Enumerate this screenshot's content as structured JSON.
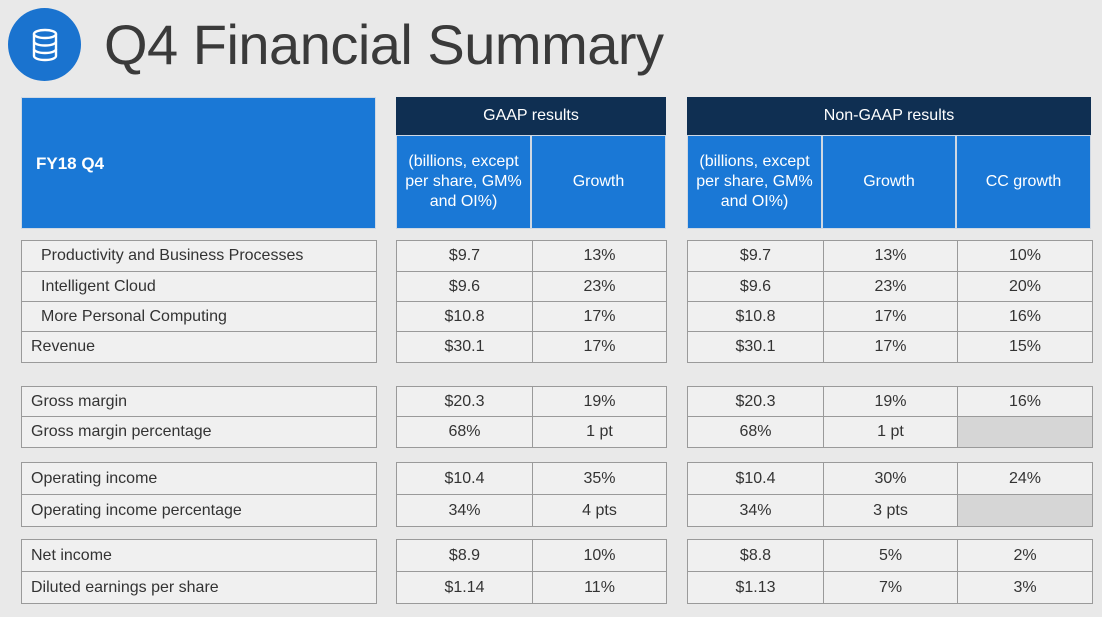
{
  "title": "Q4 Financial Summary",
  "colors": {
    "blue": "#1a78d6",
    "navy": "#0f2f52",
    "logo": "#1a73cf"
  },
  "logo_icon": "database-icon",
  "header": {
    "period": "FY18 Q4",
    "gaap": "GAAP results",
    "non_gaap": "Non-GAAP results",
    "units": "(billions, except per share, GM% and OI%)",
    "growth": "Growth",
    "cc_growth": "CC growth"
  },
  "groups": [
    [
      {
        "label": "Productivity and Business Processes",
        "indent": true,
        "gaap": "$9.7",
        "gaap_growth": "13%",
        "ng": "$9.7",
        "ng_growth": "13%",
        "cc": "10%"
      },
      {
        "label": "Intelligent Cloud",
        "indent": true,
        "gaap": "$9.6",
        "gaap_growth": "23%",
        "ng": "$9.6",
        "ng_growth": "23%",
        "cc": "20%"
      },
      {
        "label": "More Personal Computing",
        "indent": true,
        "gaap": "$10.8",
        "gaap_growth": "17%",
        "ng": "$10.8",
        "ng_growth": "17%",
        "cc": "16%"
      },
      {
        "label": "Revenue",
        "indent": false,
        "gaap": "$30.1",
        "gaap_growth": "17%",
        "ng": "$30.1",
        "ng_growth": "17%",
        "cc": "15%"
      }
    ],
    [
      {
        "label": "Gross margin",
        "indent": false,
        "gaap": "$20.3",
        "gaap_growth": "19%",
        "ng": "$20.3",
        "ng_growth": "19%",
        "cc": "16%"
      },
      {
        "label": "Gross margin percentage",
        "indent": false,
        "gaap": "68%",
        "gaap_growth": "1 pt",
        "ng": "68%",
        "ng_growth": "1 pt",
        "cc": ""
      }
    ],
    [
      {
        "label": "Operating income",
        "indent": false,
        "gaap": "$10.4",
        "gaap_growth": "35%",
        "ng": "$10.4",
        "ng_growth": "30%",
        "cc": "24%"
      },
      {
        "label": "Operating income percentage",
        "indent": false,
        "gaap": "34%",
        "gaap_growth": "4 pts",
        "ng": "34%",
        "ng_growth": "3 pts",
        "cc": ""
      }
    ],
    [
      {
        "label": "Net income",
        "indent": false,
        "gaap": "$8.9",
        "gaap_growth": "10%",
        "ng": "$8.8",
        "ng_growth": "5%",
        "cc": "2%"
      },
      {
        "label": "Diluted earnings per share",
        "indent": false,
        "gaap": "$1.14",
        "gaap_growth": "11%",
        "ng": "$1.13",
        "ng_growth": "7%",
        "cc": "3%"
      }
    ]
  ]
}
